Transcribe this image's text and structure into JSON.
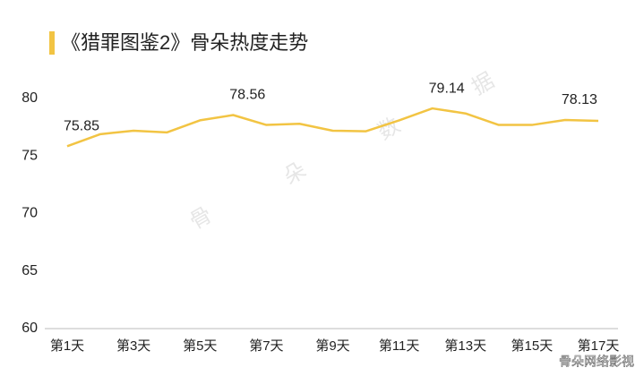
{
  "chart_data": {
    "type": "line",
    "title": "《猎罪图鉴2》骨朵热度走势",
    "categories": [
      "第1天",
      null,
      "第3天",
      null,
      "第5天",
      null,
      "第7天",
      null,
      "第9天",
      null,
      "第11天",
      null,
      "第13天",
      null,
      "第15天",
      null,
      "第17天"
    ],
    "series": [
      {
        "name": "骨朵热度",
        "color": "#f2c443",
        "values": [
          75.85,
          76.9,
          77.2,
          77.05,
          78.1,
          78.56,
          77.7,
          77.8,
          77.2,
          77.15,
          78.1,
          79.14,
          78.7,
          77.7,
          77.7,
          78.13,
          78.05
        ],
        "value_labels": [
          "75.85",
          null,
          null,
          null,
          null,
          "78.56",
          null,
          null,
          null,
          null,
          null,
          "79.14",
          null,
          null,
          null,
          "78.13",
          null
        ]
      }
    ],
    "ylim": [
      60,
      80
    ],
    "yticks": [
      60,
      65,
      70,
      75,
      80
    ],
    "grid": false,
    "watermark": "骨朵网络影视",
    "background_watermark": [
      "骨",
      "朵",
      "数",
      "据"
    ]
  }
}
